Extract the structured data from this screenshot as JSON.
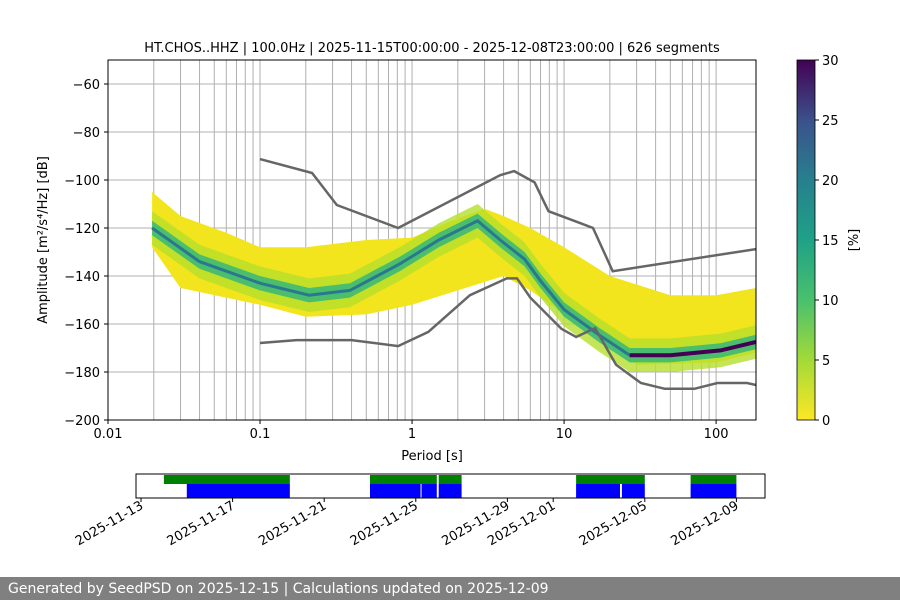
{
  "chart_data": {
    "type": "heatmap",
    "title": "HT.CHOS..HHZ | 100.0Hz | 2025-11-15T00:00:00 - 2025-12-08T23:00:00 | 626 segments",
    "xlabel": "Period [s]",
    "ylabel": "Amplitude [m²/s⁴/Hz] [dB]",
    "xscale": "log",
    "xlim": [
      0.01,
      183
    ],
    "ylim": [
      -200,
      -50
    ],
    "xticks": [
      {
        "v": 0.01,
        "label": "0.01"
      },
      {
        "v": 0.1,
        "label": "0.1"
      },
      {
        "v": 1,
        "label": "1"
      },
      {
        "v": 10,
        "label": "10"
      },
      {
        "v": 100,
        "label": "100"
      }
    ],
    "yticks": [
      {
        "v": -60,
        "label": "−60"
      },
      {
        "v": -80,
        "label": "−80"
      },
      {
        "v": -100,
        "label": "−100"
      },
      {
        "v": -120,
        "label": "−120"
      },
      {
        "v": -140,
        "label": "−140"
      },
      {
        "v": -160,
        "label": "−160"
      },
      {
        "v": -180,
        "label": "−180"
      },
      {
        "v": -200,
        "label": "−200"
      }
    ],
    "grid": true,
    "nhnm": [
      [
        0.1,
        -91.3
      ],
      [
        0.22,
        -97.1
      ],
      [
        0.32,
        -110.4
      ],
      [
        0.81,
        -120
      ],
      [
        3.8,
        -98
      ],
      [
        4.7,
        -96.3
      ],
      [
        6.4,
        -101
      ],
      [
        7.9,
        -113
      ],
      [
        12.8,
        -118
      ],
      [
        15.5,
        -120
      ],
      [
        20.9,
        -138
      ],
      [
        183,
        -128.8
      ]
    ],
    "nlnm": [
      [
        0.1,
        -167.9
      ],
      [
        0.174,
        -166.7
      ],
      [
        0.4,
        -166.7
      ],
      [
        0.81,
        -169.2
      ],
      [
        1.28,
        -163.3
      ],
      [
        2.4,
        -148
      ],
      [
        4.2,
        -141
      ],
      [
        4.9,
        -141
      ],
      [
        6.0,
        -149
      ],
      [
        9.6,
        -162
      ],
      [
        12,
        -165.4
      ],
      [
        16,
        -161.7
      ],
      [
        22,
        -177
      ],
      [
        32,
        -184.6
      ],
      [
        46,
        -187
      ],
      [
        72,
        -187
      ],
      [
        102,
        -184.6
      ],
      [
        160,
        -184.6
      ],
      [
        183,
        -185.4
      ]
    ],
    "mode": [
      [
        0.0195,
        -120
      ],
      [
        0.04,
        -134
      ],
      [
        0.1,
        -143
      ],
      [
        0.21,
        -148
      ],
      [
        0.39,
        -146
      ],
      [
        0.83,
        -135
      ],
      [
        1.5,
        -125
      ],
      [
        2.7,
        -117
      ],
      [
        3.8,
        -125
      ],
      [
        5.5,
        -133
      ],
      [
        7,
        -142
      ],
      [
        10,
        -154
      ],
      [
        17,
        -164.6
      ],
      [
        27,
        -173
      ],
      [
        50,
        -173
      ],
      [
        107,
        -171
      ],
      [
        183,
        -167.5
      ]
    ],
    "envelope_upper": [
      [
        0.0195,
        -105
      ],
      [
        0.03,
        -115
      ],
      [
        0.06,
        -122
      ],
      [
        0.1,
        -128
      ],
      [
        0.2,
        -128
      ],
      [
        0.5,
        -125
      ],
      [
        1,
        -124
      ],
      [
        2,
        -116
      ],
      [
        3,
        -112
      ],
      [
        4,
        -115
      ],
      [
        6,
        -120
      ],
      [
        10,
        -128
      ],
      [
        20,
        -140
      ],
      [
        50,
        -148
      ],
      [
        100,
        -148
      ],
      [
        183,
        -145
      ]
    ],
    "envelope_lower": [
      [
        0.0195,
        -128
      ],
      [
        0.03,
        -145
      ],
      [
        0.1,
        -152
      ],
      [
        0.2,
        -157
      ],
      [
        0.5,
        -156
      ],
      [
        1,
        -152
      ],
      [
        2,
        -146
      ],
      [
        4,
        -140
      ],
      [
        6,
        -146
      ],
      [
        10,
        -156
      ],
      [
        20,
        -168
      ],
      [
        30,
        -177
      ],
      [
        100,
        -176
      ],
      [
        183,
        -172
      ]
    ],
    "colorbar": {
      "label": "[%]",
      "range": [
        0,
        30
      ],
      "ticks": [
        "0",
        "5",
        "10",
        "15",
        "20",
        "25",
        "30"
      ]
    },
    "timeline": {
      "range": [
        "2025-11-13",
        "2025-12-10T12:00"
      ],
      "ticks": [
        "2025-11-13",
        "2025-11-17",
        "2025-11-21",
        "2025-11-25",
        "2025-11-29",
        "2025-12-01",
        "2025-12-05",
        "2025-12-09"
      ],
      "green": [
        [
          "2025-11-14",
          "2025-11-19T12:00"
        ],
        [
          "2025-11-23",
          "2025-11-25T22:00"
        ],
        [
          "2025-11-26",
          "2025-11-27"
        ],
        [
          "2025-12-02",
          "2025-12-05"
        ],
        [
          "2025-12-07",
          "2025-12-09"
        ]
      ],
      "blue": [
        [
          "2025-11-15",
          "2025-11-19T12:00"
        ],
        [
          "2025-11-23",
          "2025-11-25T05:00"
        ],
        [
          "2025-11-25T06:00",
          "2025-11-25T22:00"
        ],
        [
          "2025-11-26",
          "2025-11-27"
        ],
        [
          "2025-12-02",
          "2025-12-03T22:00"
        ],
        [
          "2025-12-04",
          "2025-12-05"
        ],
        [
          "2025-12-07",
          "2025-12-09"
        ]
      ]
    }
  },
  "colors": {
    "green": "#008000",
    "blue": "#0000ff",
    "noise_model": "#666666",
    "footer_bg": "#808080"
  },
  "footer": "Generated by SeedPSD on 2025-12-15 | Calculations updated on 2025-12-09"
}
